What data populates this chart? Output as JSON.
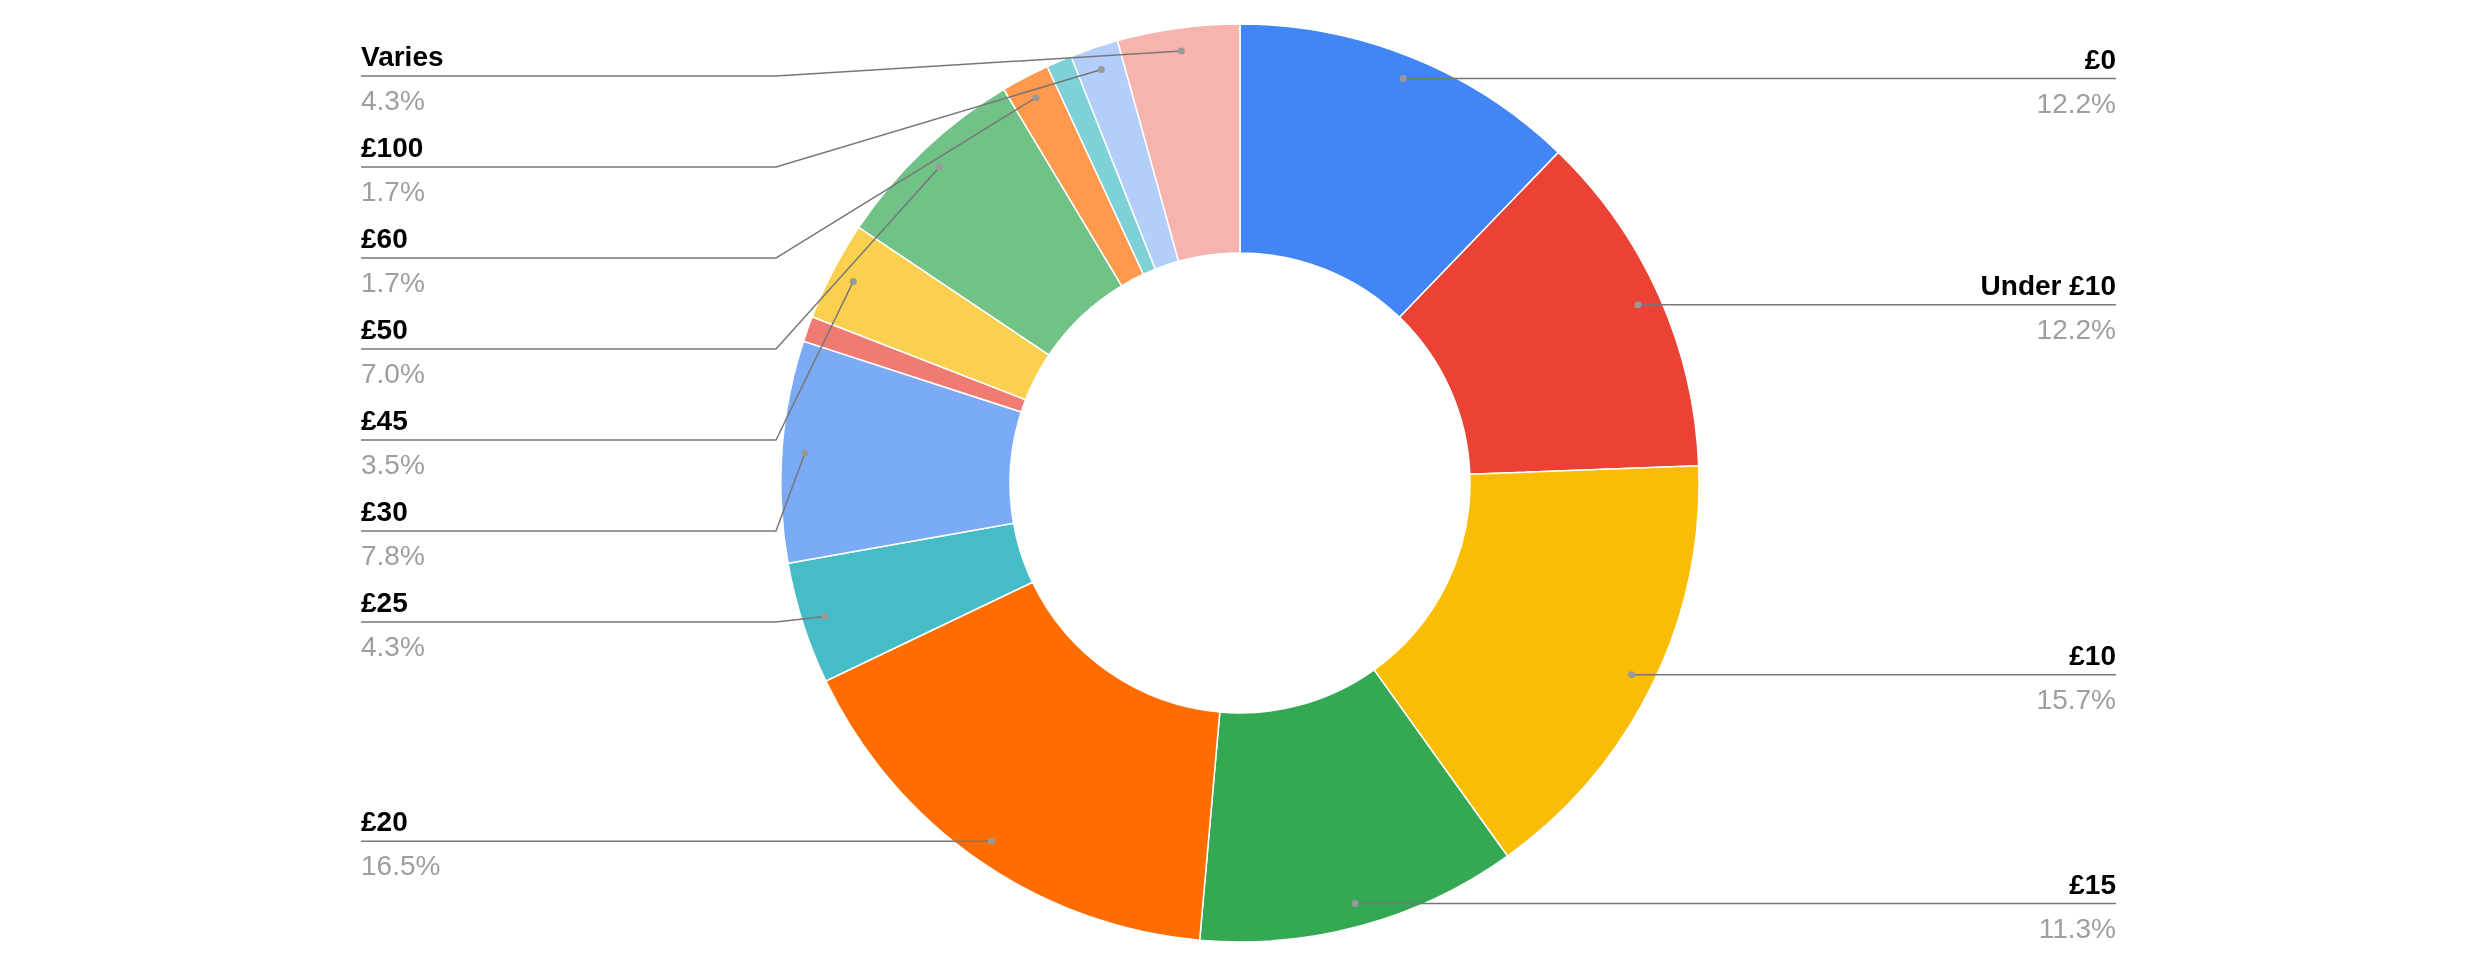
{
  "chart_data": {
    "type": "donut",
    "categories": [
      "£0",
      "Under £10",
      "£10",
      "£15",
      "£20",
      "£25",
      "£30",
      null,
      "£45",
      "£50",
      "£60",
      null,
      "£100",
      "Varies"
    ],
    "values": [
      12.2,
      12.2,
      15.7,
      11.3,
      16.5,
      4.3,
      7.8,
      0.9,
      3.5,
      7.0,
      1.7,
      0.9,
      1.7,
      4.3
    ],
    "colors": [
      "#4285f4",
      "#ea4335",
      "#fbbc04",
      "#34a853",
      "#ff6d01",
      "#46bdc6",
      "#7baaf7",
      "#f07b72",
      "#fcd04f",
      "#71c287",
      "#ff994d",
      "#7ed1d7",
      "#b3cefb",
      "#f7b4ae"
    ],
    "value_labels": [
      "12.2%",
      "12.2%",
      "15.7%",
      "11.3%",
      "16.5%",
      "4.3%",
      "7.8%",
      null,
      "3.5%",
      "7.0%",
      "1.7%",
      null,
      "1.7%",
      "4.3%"
    ]
  }
}
